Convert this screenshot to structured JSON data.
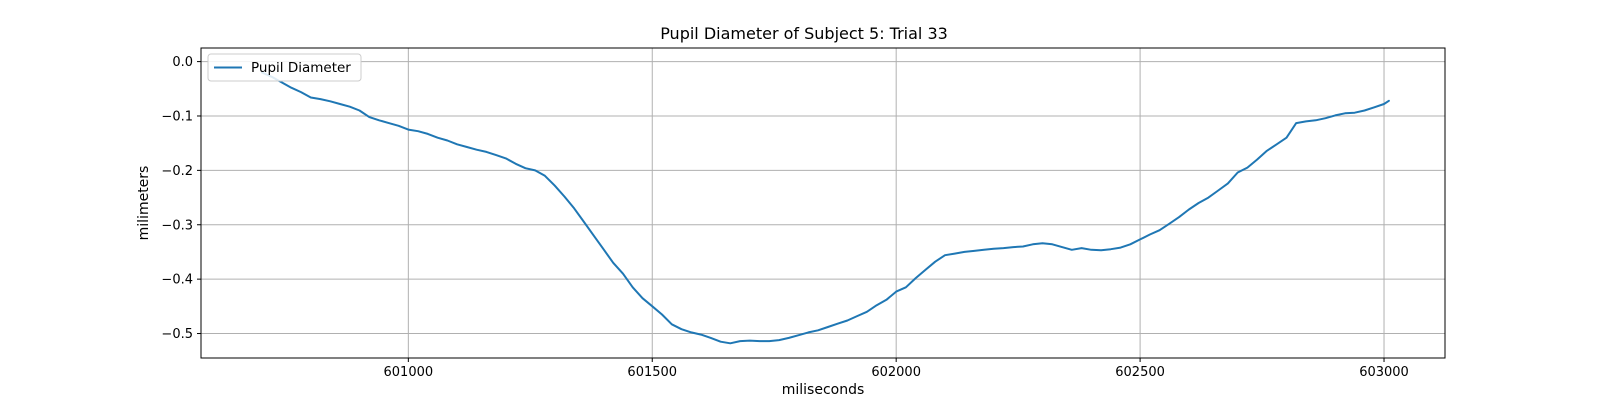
{
  "chart_data": {
    "type": "line",
    "title": "Pupil Diameter of Subject 5: Trial 33",
    "xlabel": "miliseconds",
    "ylabel": "milimeters",
    "xlim": [
      600575,
      603125
    ],
    "ylim": [
      -0.545,
      0.025
    ],
    "xticks": [
      601000,
      601500,
      602000,
      602500,
      603000
    ],
    "yticks": [
      0.0,
      -0.1,
      -0.2,
      -0.3,
      -0.4,
      -0.5
    ],
    "ytick_labels": [
      "0.0",
      "−0.1",
      "−0.2",
      "−0.3",
      "−0.4",
      "−0.5"
    ],
    "grid": true,
    "legend": {
      "position": "top-left",
      "entries": [
        "Pupil Diameter"
      ]
    },
    "series": [
      {
        "name": "Pupil Diameter",
        "color": "#1f77b4",
        "x": [
          600700,
          600720,
          600740,
          600760,
          600780,
          600800,
          600820,
          600840,
          600860,
          600880,
          600900,
          600920,
          600940,
          600960,
          600980,
          601000,
          601020,
          601040,
          601060,
          601080,
          601100,
          601120,
          601140,
          601160,
          601180,
          601200,
          601220,
          601240,
          601260,
          601280,
          601300,
          601320,
          601340,
          601360,
          601380,
          601400,
          601420,
          601440,
          601460,
          601480,
          601500,
          601520,
          601540,
          601560,
          601580,
          601600,
          601620,
          601640,
          601660,
          601680,
          601700,
          601720,
          601740,
          601760,
          601780,
          601800,
          601820,
          601840,
          601860,
          601880,
          601900,
          601920,
          601940,
          601960,
          601980,
          602000,
          602020,
          602040,
          602060,
          602080,
          602100,
          602120,
          602140,
          602160,
          602180,
          602200,
          602220,
          602240,
          602260,
          602280,
          602300,
          602320,
          602340,
          602360,
          602380,
          602400,
          602420,
          602440,
          602460,
          602480,
          602500,
          602520,
          602540,
          602560,
          602580,
          602600,
          602620,
          602640,
          602660,
          602680,
          602700,
          602720,
          602740,
          602760,
          602780,
          602800,
          602820,
          602840,
          602860,
          602880,
          602900,
          602920,
          602940,
          602960,
          602980,
          603000,
          603010
        ],
        "y": [
          -0.02,
          -0.028,
          -0.038,
          -0.048,
          -0.056,
          -0.066,
          -0.069,
          -0.073,
          -0.078,
          -0.083,
          -0.09,
          -0.102,
          -0.108,
          -0.113,
          -0.118,
          -0.125,
          -0.128,
          -0.133,
          -0.14,
          -0.145,
          -0.152,
          -0.157,
          -0.162,
          -0.166,
          -0.172,
          -0.178,
          -0.188,
          -0.196,
          -0.2,
          -0.21,
          -0.228,
          -0.248,
          -0.27,
          -0.295,
          -0.32,
          -0.345,
          -0.37,
          -0.39,
          -0.415,
          -0.435,
          -0.45,
          -0.465,
          -0.483,
          -0.492,
          -0.498,
          -0.502,
          -0.508,
          -0.515,
          -0.518,
          -0.514,
          -0.513,
          -0.514,
          -0.514,
          -0.512,
          -0.508,
          -0.503,
          -0.498,
          -0.494,
          -0.488,
          -0.482,
          -0.476,
          -0.468,
          -0.46,
          -0.448,
          -0.438,
          -0.423,
          -0.415,
          -0.398,
          -0.383,
          -0.368,
          -0.356,
          -0.353,
          -0.35,
          -0.348,
          -0.346,
          -0.344,
          -0.343,
          -0.341,
          -0.34,
          -0.336,
          -0.334,
          -0.336,
          -0.341,
          -0.346,
          -0.343,
          -0.346,
          -0.347,
          -0.345,
          -0.342,
          -0.336,
          -0.327,
          -0.318,
          -0.31,
          -0.298,
          -0.286,
          -0.272,
          -0.26,
          -0.25,
          -0.237,
          -0.224,
          -0.204,
          -0.195,
          -0.18,
          -0.164,
          -0.152,
          -0.14,
          -0.113,
          -0.11,
          -0.108,
          -0.104,
          -0.099,
          -0.095,
          -0.094,
          -0.09,
          -0.084,
          -0.078,
          -0.072
        ]
      }
    ]
  }
}
